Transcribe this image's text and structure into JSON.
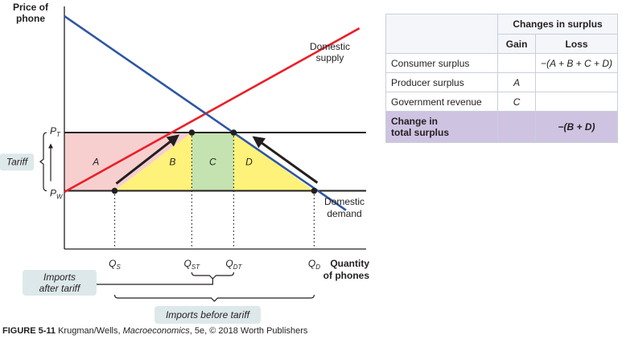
{
  "chart_data": {
    "type": "line",
    "title": "",
    "xlabel": "Quantity of phones",
    "ylabel": "Price of phone",
    "series": [
      {
        "name": "Domestic supply",
        "color": "#e8202a",
        "points": [
          [
            0,
            2.35
          ],
          [
            8.8,
            9.1
          ]
        ]
      },
      {
        "name": "Domestic demand",
        "color": "#2e56a3",
        "points": [
          [
            0,
            9.6
          ],
          [
            8.4,
            1.6
          ]
        ]
      }
    ],
    "price_levels": {
      "P_T": 4.8,
      "P_W": 2.4
    },
    "quantities": {
      "Q_S": 1.5,
      "Q_ST": 3.8,
      "Q_DT": 5.05,
      "Q_D": 7.45
    },
    "xlim": [
      0,
      9.0
    ],
    "ylim": [
      0,
      10
    ],
    "regions": [
      {
        "label": "A",
        "color": "#f7cfcf"
      },
      {
        "label": "B",
        "color": "#fff27a"
      },
      {
        "label": "C",
        "color": "#c4e3b0"
      },
      {
        "label": "D",
        "color": "#fff27a"
      }
    ],
    "annotations": {
      "supply_label": [
        "Domestic",
        "supply"
      ],
      "demand_label": [
        "Domestic",
        "demand"
      ],
      "tariff_label": "Tariff",
      "imports_after_tariff": [
        "Imports",
        "after tariff"
      ],
      "imports_before_tariff": "Imports before tariff"
    },
    "tick_labels": {
      "P_T": {
        "main": "P",
        "sub": "T"
      },
      "P_W": {
        "main": "P",
        "sub": "W"
      },
      "Q_S": {
        "main": "Q",
        "sub": "S"
      },
      "Q_ST": {
        "main": "Q",
        "sub": "ST"
      },
      "Q_DT": {
        "main": "Q",
        "sub": "DT"
      },
      "Q_D": {
        "main": "Q",
        "sub": "D"
      }
    },
    "ylabel_lines": [
      "Price of",
      "phone"
    ],
    "xlabel_lines": [
      "Quantity",
      "of phones"
    ]
  },
  "table": {
    "header_group": "Changes in surplus",
    "col_gain": "Gain",
    "col_loss": "Loss",
    "rows": [
      {
        "label": "Consumer surplus",
        "gain": "",
        "loss": "−(A + B + C + D)"
      },
      {
        "label": "Producer surplus",
        "gain": "A",
        "loss": ""
      },
      {
        "label": "Government revenue",
        "gain": "C",
        "loss": ""
      }
    ],
    "total": {
      "label_line1": "Change in",
      "label_line2": "total surplus",
      "gain": "",
      "loss": "−(B + D)"
    }
  },
  "caption": {
    "figure": "FIGURE 5-11",
    "before_italic": " Krugman/Wells, ",
    "italic": "Macroeconomics",
    "after_italic": ", 5e, © 2018 Worth Publishers"
  }
}
